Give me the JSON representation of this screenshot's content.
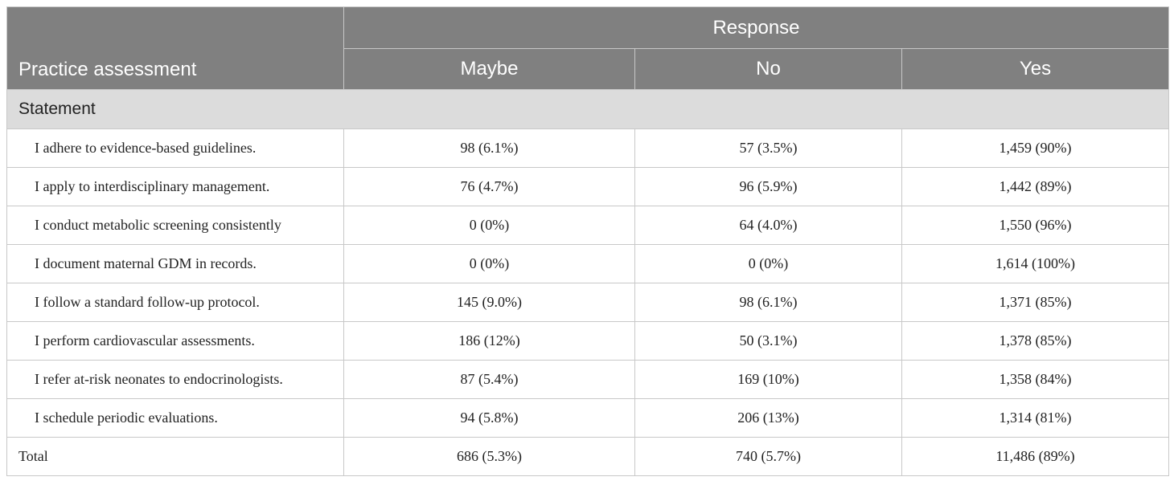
{
  "table": {
    "stub_header": "Practice assessment",
    "group_header": "Response",
    "columns": [
      "Maybe",
      "No",
      "Yes"
    ],
    "section_label": "Statement",
    "rows": [
      {
        "label": "I adhere to evidence-based guidelines.",
        "maybe": "98 (6.1%)",
        "no": "57 (3.5%)",
        "yes": "1,459 (90%)"
      },
      {
        "label": "I apply to interdisciplinary management.",
        "maybe": "76 (4.7%)",
        "no": "96 (5.9%)",
        "yes": "1,442 (89%)"
      },
      {
        "label": "I conduct metabolic screening consistently",
        "maybe": "0 (0%)",
        "no": "64 (4.0%)",
        "yes": "1,550 (96%)"
      },
      {
        "label": "I document maternal GDM in records.",
        "maybe": "0 (0%)",
        "no": "0 (0%)",
        "yes": "1,614 (100%)"
      },
      {
        "label": "I follow a standard follow-up protocol.",
        "maybe": "145 (9.0%)",
        "no": "98 (6.1%)",
        "yes": "1,371 (85%)"
      },
      {
        "label": "I perform cardiovascular assessments.",
        "maybe": "186 (12%)",
        "no": "50 (3.1%)",
        "yes": "1,378 (85%)"
      },
      {
        "label": "I refer at-risk neonates to endocrinologists.",
        "maybe": "87 (5.4%)",
        "no": "169 (10%)",
        "yes": "1,358 (84%)"
      },
      {
        "label": "I schedule periodic evaluations.",
        "maybe": "94 (5.8%)",
        "no": "206 (13%)",
        "yes": "1,314 (81%)"
      }
    ],
    "total": {
      "label": "Total",
      "maybe": "686 (5.3%)",
      "no": "740 (5.7%)",
      "yes": "11,486 (89%)"
    }
  },
  "colors": {
    "header_bg": "#808080",
    "header_text": "#ffffff",
    "section_bg": "#dcdcdc",
    "border": "#c8c8c8"
  }
}
